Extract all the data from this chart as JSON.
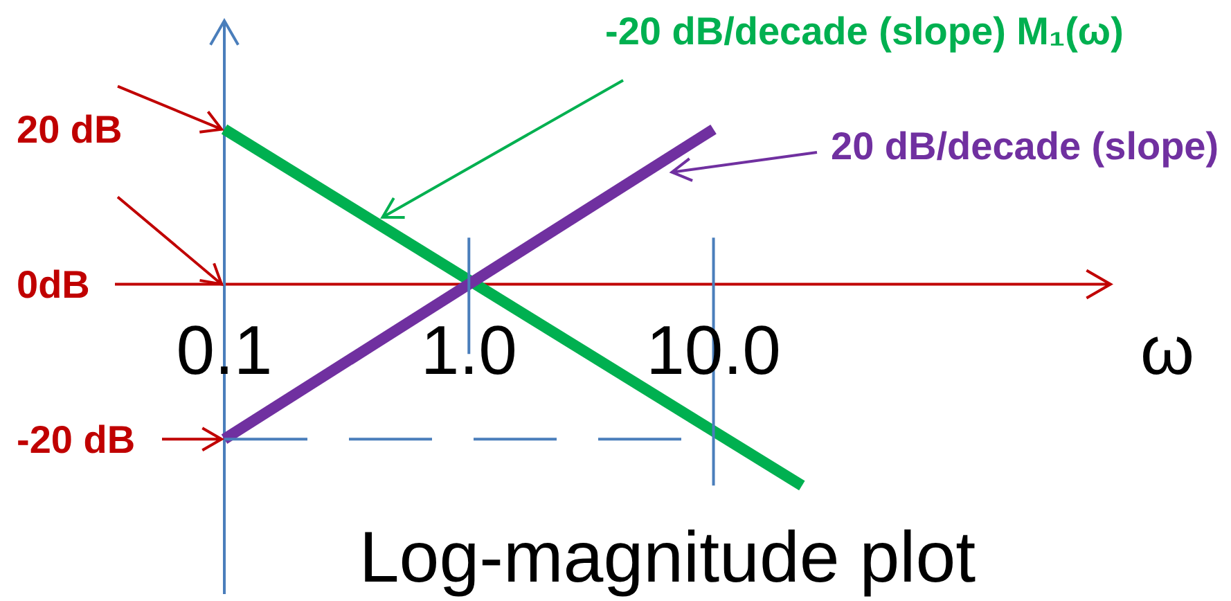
{
  "chart_data": {
    "type": "line",
    "title": "Log-magnitude plot",
    "xlabel": "ω",
    "log": "x",
    "xlim": [
      0.1,
      420
    ],
    "xticks": [
      0.1,
      {
        "value": 1,
        "label": "1.0"
      },
      {
        "value": 10,
        "label": "10.0"
      }
    ],
    "ylim": [
      -40,
      34
    ],
    "yticks": [
      {
        "value": 20,
        "label": "20 dB"
      },
      {
        "value": 0,
        "label": "0dB"
      },
      {
        "value": -20,
        "label": "-20 dB"
      }
    ],
    "series": [
      {
        "name": "-20 dB/decade (slope) M₁(ω)",
        "color": "#00b050",
        "x": [
          0.1,
          23
        ],
        "values": [
          20,
          -26
        ]
      },
      {
        "name": "20 dB/decade (slope)",
        "color": "#7030a0",
        "x": [
          0.1,
          10
        ],
        "values": [
          -20,
          20
        ]
      },
      {
        "color": "#4a7ebb",
        "x": [
          1,
          1
        ],
        "values": [
          6,
          -9
        ]
      },
      {
        "color": "#4a7ebb",
        "x": [
          10,
          10
        ],
        "values": [
          6,
          -26
        ]
      },
      {
        "color": "#4a7ebb",
        "x": [
          0.1,
          10
        ],
        "values": [
          -20,
          -20
        ],
        "line_style": "dashed"
      }
    ]
  }
}
